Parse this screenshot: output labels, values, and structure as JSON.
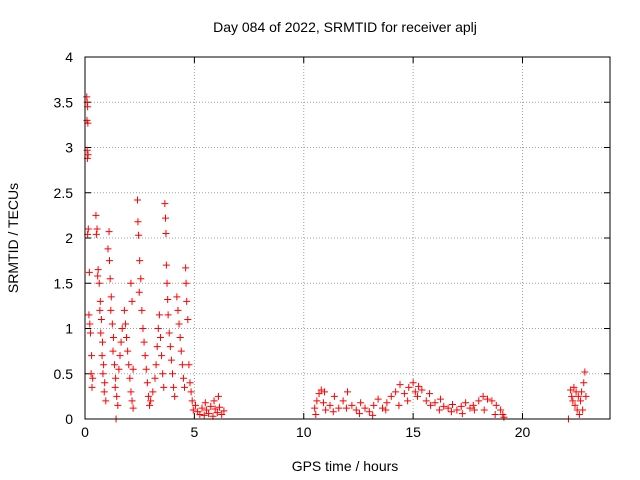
{
  "chart_data": {
    "type": "scatter",
    "title": "Day 084 of 2022, SRMTID for receiver aplj",
    "xlabel": "GPS time / hours",
    "ylabel": "SRMTID / TECUs",
    "xlim": [
      0,
      24
    ],
    "ylim": [
      0,
      4
    ],
    "xticks": [
      0,
      5,
      10,
      15,
      20
    ],
    "yticks": [
      0,
      0.5,
      1,
      1.5,
      2,
      2.5,
      3,
      3.5,
      4
    ],
    "xtick_labels": [
      "0",
      "5",
      "10",
      "15",
      "20"
    ],
    "ytick_labels": [
      "0",
      "0.5",
      "1",
      "1.5",
      "2",
      "2.5",
      "3",
      "3.5",
      "4"
    ],
    "grid": true,
    "marker": "+",
    "color": "#ff0000",
    "series": [
      {
        "name": "SRMTID",
        "points": [
          [
            0.08,
            3.56
          ],
          [
            0.1,
            3.5
          ],
          [
            0.12,
            3.45
          ],
          [
            0.09,
            3.3
          ],
          [
            0.13,
            3.27
          ],
          [
            0.1,
            2.97
          ],
          [
            0.14,
            2.92
          ],
          [
            0.11,
            2.88
          ],
          [
            0.15,
            2.1
          ],
          [
            0.12,
            2.04
          ],
          [
            0.2,
            1.62
          ],
          [
            0.18,
            1.15
          ],
          [
            0.22,
            1.05
          ],
          [
            0.25,
            0.95
          ],
          [
            0.3,
            0.7
          ],
          [
            0.28,
            0.5
          ],
          [
            0.35,
            0.45
          ],
          [
            0.32,
            0.35
          ],
          [
            0.5,
            2.25
          ],
          [
            0.55,
            2.1
          ],
          [
            0.52,
            2.04
          ],
          [
            0.6,
            1.65
          ],
          [
            0.58,
            1.58
          ],
          [
            0.65,
            1.5
          ],
          [
            0.7,
            1.3
          ],
          [
            0.68,
            1.2
          ],
          [
            0.75,
            1.1
          ],
          [
            0.72,
            0.95
          ],
          [
            0.8,
            0.85
          ],
          [
            0.78,
            0.7
          ],
          [
            0.85,
            0.6
          ],
          [
            0.82,
            0.5
          ],
          [
            0.9,
            0.4
          ],
          [
            0.88,
            0.3
          ],
          [
            0.95,
            0.2
          ],
          [
            1.1,
            2.07
          ],
          [
            1.05,
            1.88
          ],
          [
            1.12,
            1.75
          ],
          [
            1.15,
            1.55
          ],
          [
            1.2,
            1.35
          ],
          [
            1.18,
            1.2
          ],
          [
            1.25,
            1.05
          ],
          [
            1.3,
            0.9
          ],
          [
            1.28,
            0.75
          ],
          [
            1.35,
            0.6
          ],
          [
            1.4,
            0.45
          ],
          [
            1.38,
            0.35
          ],
          [
            1.45,
            0.25
          ],
          [
            1.5,
            0.15
          ],
          [
            1.42,
            0.0
          ],
          [
            1.55,
            0.55
          ],
          [
            1.6,
            0.7
          ],
          [
            1.65,
            0.85
          ],
          [
            1.7,
            1.0
          ],
          [
            1.8,
            1.2
          ],
          [
            1.85,
            1.05
          ],
          [
            1.9,
            0.9
          ],
          [
            1.95,
            0.75
          ],
          [
            2.0,
            0.6
          ],
          [
            2.05,
            0.45
          ],
          [
            2.1,
            0.3
          ],
          [
            2.15,
            0.2
          ],
          [
            2.2,
            0.12
          ],
          [
            2.1,
            1.5
          ],
          [
            2.15,
            1.3
          ],
          [
            2.2,
            0.55
          ],
          [
            2.4,
            2.42
          ],
          [
            2.42,
            2.18
          ],
          [
            2.45,
            2.03
          ],
          [
            2.5,
            1.75
          ],
          [
            2.55,
            1.55
          ],
          [
            2.48,
            1.4
          ],
          [
            2.6,
            1.2
          ],
          [
            2.65,
            1.0
          ],
          [
            2.7,
            0.85
          ],
          [
            2.75,
            0.7
          ],
          [
            2.8,
            0.55
          ],
          [
            2.85,
            0.4
          ],
          [
            2.9,
            0.25
          ],
          [
            2.95,
            0.15
          ],
          [
            3.0,
            0.2
          ],
          [
            3.1,
            0.3
          ],
          [
            3.2,
            0.45
          ],
          [
            3.25,
            0.6
          ],
          [
            3.3,
            0.8
          ],
          [
            3.35,
            1.0
          ],
          [
            3.4,
            1.15
          ],
          [
            3.45,
            0.9
          ],
          [
            3.5,
            0.7
          ],
          [
            3.55,
            0.5
          ],
          [
            3.6,
            0.35
          ],
          [
            3.65,
            2.38
          ],
          [
            3.68,
            2.22
          ],
          [
            3.7,
            2.05
          ],
          [
            3.72,
            1.7
          ],
          [
            3.75,
            1.5
          ],
          [
            3.78,
            1.32
          ],
          [
            3.8,
            1.15
          ],
          [
            3.85,
            0.95
          ],
          [
            3.9,
            0.8
          ],
          [
            3.95,
            0.65
          ],
          [
            4.0,
            0.5
          ],
          [
            4.05,
            0.35
          ],
          [
            4.1,
            0.25
          ],
          [
            4.2,
            1.35
          ],
          [
            4.25,
            1.2
          ],
          [
            4.3,
            1.05
          ],
          [
            4.35,
            0.9
          ],
          [
            4.4,
            0.75
          ],
          [
            4.45,
            0.6
          ],
          [
            4.5,
            0.45
          ],
          [
            4.55,
            0.35
          ],
          [
            4.6,
            1.67
          ],
          [
            4.62,
            1.5
          ],
          [
            4.65,
            1.3
          ],
          [
            4.7,
            1.1
          ],
          [
            4.75,
            0.6
          ],
          [
            4.8,
            0.4
          ],
          [
            4.85,
            0.3
          ],
          [
            4.9,
            0.2
          ],
          [
            4.95,
            0.1
          ],
          [
            5.05,
            0.15
          ],
          [
            5.15,
            0.08
          ],
          [
            5.25,
            0.05
          ],
          [
            5.35,
            0.12
          ],
          [
            5.45,
            0.04
          ],
          [
            5.55,
            0.1
          ],
          [
            5.65,
            0.06
          ],
          [
            5.75,
            0.14
          ],
          [
            5.85,
            0.03
          ],
          [
            5.95,
            0.11
          ],
          [
            6.05,
            0.07
          ],
          [
            6.15,
            0.13
          ],
          [
            6.25,
            0.05
          ],
          [
            6.35,
            0.09
          ],
          [
            6.1,
            0.25
          ],
          [
            5.9,
            0.2
          ],
          [
            5.5,
            0.18
          ],
          [
            10.5,
            0.12
          ],
          [
            10.6,
            0.2
          ],
          [
            10.7,
            0.28
          ],
          [
            10.8,
            0.32
          ],
          [
            10.9,
            0.18
          ],
          [
            11.0,
            0.1
          ],
          [
            11.2,
            0.15
          ],
          [
            11.4,
            0.25
          ],
          [
            11.6,
            0.12
          ],
          [
            11.8,
            0.2
          ],
          [
            12.0,
            0.3
          ],
          [
            12.2,
            0.15
          ],
          [
            12.4,
            0.1
          ],
          [
            12.6,
            0.18
          ],
          [
            12.8,
            0.12
          ],
          [
            13.0,
            0.08
          ],
          [
            13.2,
            0.15
          ],
          [
            13.4,
            0.22
          ],
          [
            13.6,
            0.12
          ],
          [
            13.8,
            0.18
          ],
          [
            14.0,
            0.25
          ],
          [
            14.2,
            0.3
          ],
          [
            14.4,
            0.38
          ],
          [
            14.6,
            0.28
          ],
          [
            14.8,
            0.35
          ],
          [
            15.0,
            0.4
          ],
          [
            15.1,
            0.3
          ],
          [
            15.2,
            0.25
          ],
          [
            15.4,
            0.32
          ],
          [
            15.6,
            0.2
          ],
          [
            15.8,
            0.15
          ],
          [
            16.0,
            0.18
          ],
          [
            16.2,
            0.1
          ],
          [
            16.4,
            0.14
          ],
          [
            16.6,
            0.12
          ],
          [
            16.8,
            0.16
          ],
          [
            17.0,
            0.1
          ],
          [
            17.2,
            0.14
          ],
          [
            17.4,
            0.18
          ],
          [
            17.6,
            0.12
          ],
          [
            17.8,
            0.1
          ],
          [
            18.0,
            0.2
          ],
          [
            18.2,
            0.25
          ],
          [
            18.4,
            0.22
          ],
          [
            18.6,
            0.2
          ],
          [
            18.8,
            0.15
          ],
          [
            19.0,
            0.1
          ],
          [
            19.1,
            0.05
          ],
          [
            10.55,
            0.05
          ],
          [
            10.95,
            0.3
          ],
          [
            11.35,
            0.08
          ],
          [
            11.95,
            0.12
          ],
          [
            12.55,
            0.06
          ],
          [
            13.15,
            0.04
          ],
          [
            13.75,
            0.1
          ],
          [
            14.35,
            0.15
          ],
          [
            14.75,
            0.2
          ],
          [
            15.25,
            0.36
          ],
          [
            15.75,
            0.28
          ],
          [
            16.25,
            0.22
          ],
          [
            16.75,
            0.08
          ],
          [
            17.25,
            0.06
          ],
          [
            17.75,
            0.15
          ],
          [
            18.25,
            0.1
          ],
          [
            18.75,
            0.05
          ],
          [
            19.15,
            0.02
          ],
          [
            22.1,
            0.0
          ],
          [
            22.2,
            0.32
          ],
          [
            22.25,
            0.25
          ],
          [
            22.3,
            0.2
          ],
          [
            22.35,
            0.35
          ],
          [
            22.4,
            0.15
          ],
          [
            22.45,
            0.3
          ],
          [
            22.5,
            0.1
          ],
          [
            22.55,
            0.25
          ],
          [
            22.6,
            0.05
          ],
          [
            22.65,
            0.2
          ],
          [
            22.7,
            0.3
          ],
          [
            22.75,
            0.1
          ],
          [
            22.8,
            0.4
          ],
          [
            22.85,
            0.52
          ],
          [
            22.9,
            0.25
          ]
        ]
      }
    ]
  }
}
